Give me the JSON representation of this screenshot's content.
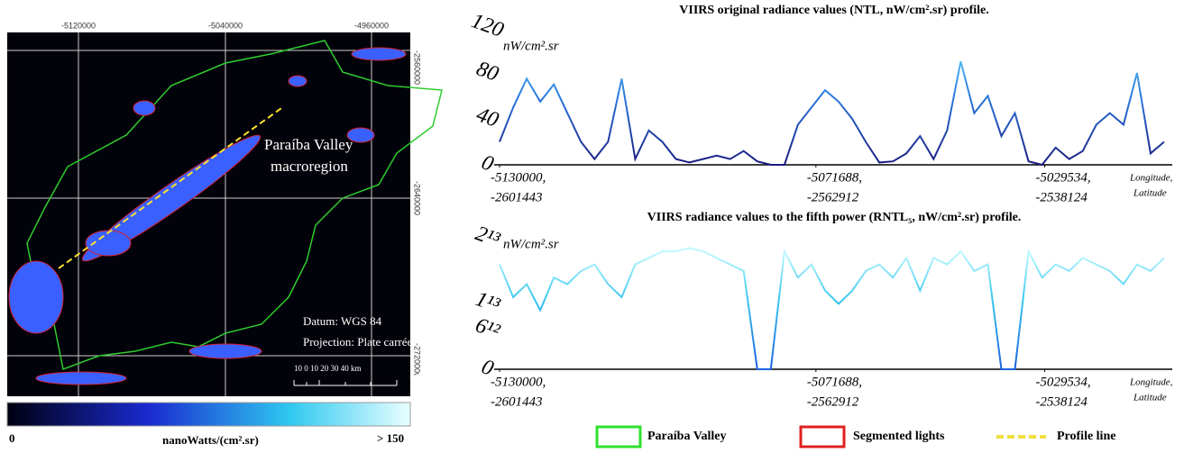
{
  "map": {
    "top_ticks": [
      "-5120000",
      "-5040000",
      "-4960000"
    ],
    "right_ticks": [
      "-2560000",
      "-2640000",
      "-2720000"
    ],
    "region_label": [
      "Paraíba Valley",
      "macroregion"
    ],
    "datum": "Datum:  WGS 84",
    "projection": "Projection:  Plate carrée",
    "scale_label": "10  0   10  20  30  40 km",
    "colorbar_min": "0",
    "colorbar_unit": "nanoWatts/(cm².sr)",
    "colorbar_max": "> 150"
  },
  "chart_data": [
    {
      "type": "line",
      "title": "VIIRS original radiance values (NTL, nW/cm².sr) profile.",
      "y_label": "nW/cm².sr",
      "x_label": [
        "Longitude,",
        "Latitude"
      ],
      "x": [
        -5130000,
        -5127500,
        -5125000,
        -5122500,
        -5120000,
        -5117500,
        -5115000,
        -5112500,
        -5110000,
        -5107500,
        -5105000,
        -5102500,
        -5100000,
        -5097500,
        -5095000,
        -5092500,
        -5090000,
        -5087500,
        -5085000,
        -5082500,
        -5080000,
        -5077500,
        -5075000,
        -5072500,
        -5070000,
        -5067500,
        -5065000,
        -5062500,
        -5060000,
        -5057500,
        -5055000,
        -5052500,
        -5050000,
        -5047500,
        -5045000,
        -5042500,
        -5040000,
        -5037500,
        -5035000,
        -5032500,
        -5030000,
        -5027500,
        -5025000,
        -5022500,
        -5020000,
        -5017500,
        -5015000,
        -5012500,
        -5010000,
        -5007500
      ],
      "values": [
        20,
        50,
        75,
        55,
        70,
        45,
        20,
        5,
        20,
        75,
        5,
        30,
        20,
        5,
        2,
        5,
        8,
        5,
        12,
        3,
        0,
        0,
        35,
        50,
        65,
        55,
        40,
        20,
        2,
        3,
        10,
        25,
        5,
        30,
        90,
        45,
        60,
        25,
        45,
        3,
        0,
        15,
        5,
        12,
        35,
        45,
        35,
        80,
        10,
        20
      ],
      "xlim": [
        -5131000,
        -5006000
      ],
      "xticks": [
        {
          "value": -5130000,
          "label": "-5130000,",
          "latitude": "-2601443"
        },
        {
          "value": -5071688,
          "label": "-5071688,",
          "latitude": "-2562912"
        },
        {
          "value": -5029534,
          "label": "-5029534,",
          "latitude": "-2538124"
        }
      ],
      "ylim": [
        0,
        120
      ],
      "yticks": [
        0,
        40,
        80,
        120
      ]
    },
    {
      "type": "line",
      "title": "VIIRS radiance values to the fifth power (RNTL₅, nW/cm².sr) profile.",
      "y_label": "nW/cm².sr",
      "x_label": [
        "Longitude,",
        "Latitude"
      ],
      "x": [
        -5130000,
        -5127500,
        -5125000,
        -5122500,
        -5120000,
        -5117500,
        -5115000,
        -5112500,
        -5110000,
        -5107500,
        -5105000,
        -5102500,
        -5100000,
        -5097500,
        -5095000,
        -5092500,
        -5090000,
        -5087500,
        -5085000,
        -5082500,
        -5080000,
        -5077500,
        -5075000,
        -5072500,
        -5070000,
        -5067500,
        -5065000,
        -5062500,
        -5060000,
        -5057500,
        -5055000,
        -5052500,
        -5050000,
        -5047500,
        -5045000,
        -5042500,
        -5040000,
        -5037500,
        -5035000,
        -5032500,
        -5030000,
        -5027500,
        -5025000,
        -5022500,
        -5020000,
        -5017500,
        -5015000,
        -5012500,
        -5010000,
        -5007500
      ],
      "values": [
        16000000000000.0,
        11000000000000.0,
        13000000000000.0,
        9000000000000.0,
        14000000000000.0,
        13000000000000.0,
        15000000000000.0,
        16000000000000.0,
        13000000000000.0,
        11000000000000.0,
        16000000000000.0,
        17000000000000.0,
        18000000000000.0,
        18000000000000.0,
        18500000000000.0,
        18000000000000.0,
        17000000000000.0,
        16000000000000.0,
        15000000000000.0,
        0,
        0,
        18000000000000.0,
        14000000000000.0,
        16000000000000.0,
        12000000000000.0,
        10000000000000.0,
        12000000000000.0,
        15000000000000.0,
        16000000000000.0,
        14000000000000.0,
        17000000000000.0,
        12000000000000.0,
        17000000000000.0,
        16000000000000.0,
        18000000000000.0,
        15000000000000.0,
        16000000000000.0,
        0,
        0,
        18000000000000.0,
        14000000000000.0,
        16000000000000.0,
        15000000000000.0,
        17000000000000.0,
        16000000000000.0,
        15000000000000.0,
        13000000000000.0,
        16000000000000.0,
        15000000000000.0,
        17000000000000.0
      ],
      "xlim": [
        -5131000,
        -5006000
      ],
      "xticks": [
        {
          "value": -5130000,
          "label": "-5130000,",
          "latitude": "-2601443"
        },
        {
          "value": -5071688,
          "label": "-5071688,",
          "latitude": "-2562912"
        },
        {
          "value": -5029534,
          "label": "-5029534,",
          "latitude": "-2538124"
        }
      ],
      "ylim": [
        0,
        22000000000000.0
      ],
      "yticks": [
        0,
        {
          "value": 6000000000000.0,
          "label": "6¹²"
        },
        {
          "value": 10000000000000.0,
          "label": "1¹³"
        },
        {
          "value": 20000000000000.0,
          "label": "2¹³"
        }
      ]
    }
  ],
  "legend": [
    "Paraíba  Valley",
    "Segmented lights",
    "Profile line"
  ]
}
